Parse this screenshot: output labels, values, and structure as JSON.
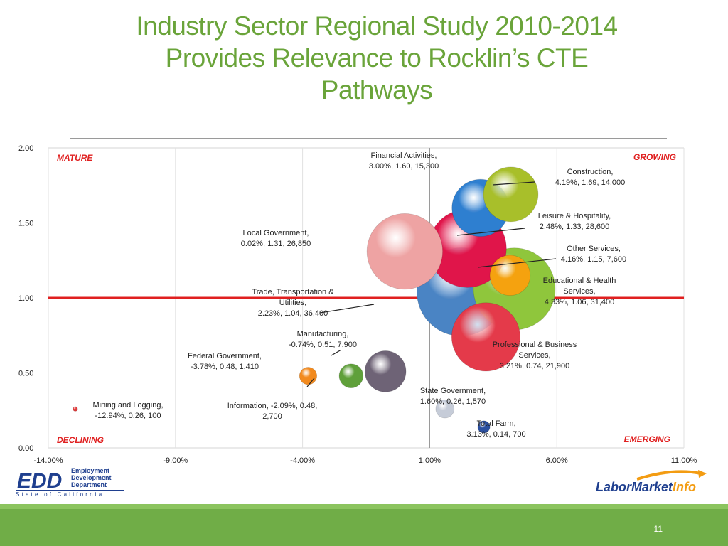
{
  "slide": {
    "title_lines": [
      "Industry Sector Regional Study 2010-2014",
      "Provides Relevance to Rocklin’s CTE",
      "Pathways"
    ],
    "page_number": "11",
    "accent_color": "#6aa43a",
    "bar_color": "#70ad47"
  },
  "logos": {
    "edd": {
      "abbr": "EDD",
      "lines": [
        "Employment",
        "Development",
        "Department"
      ],
      "state": "State of California"
    },
    "lmi": {
      "part1": "LaborMarket",
      "part2": "Info"
    }
  },
  "chart_data": {
    "type": "scatter",
    "subtype": "bubble",
    "xlim": [
      -14,
      11
    ],
    "ylim": [
      0,
      2
    ],
    "xticks": [
      -14,
      -9,
      -4,
      1,
      6,
      11
    ],
    "xtick_labels": [
      "-14.00%",
      "-9.00%",
      "-4.00%",
      "1.00%",
      "6.00%",
      "11.00%"
    ],
    "yticks": [
      0,
      0.5,
      1,
      1.5,
      2
    ],
    "ytick_labels": [
      "0.00",
      "0.50",
      "1.00",
      "1.50",
      "2.00"
    ],
    "grid": true,
    "reference_lines": {
      "vertical_x": 1,
      "horizontal_y": 1,
      "horizontal_color": "#e02020"
    },
    "quadrants": {
      "top_left": "MATURE",
      "top_right": "GROWING",
      "bottom_left": "DECLINING",
      "bottom_right": "EMERGING"
    },
    "points": [
      {
        "label_lines": [
          "Financial Activities,",
          "3.00%, 1.60, 15,300"
        ],
        "x": 3.0,
        "y": 1.6,
        "size": 15300,
        "color": "#2e7fd0"
      },
      {
        "label_lines": [
          "Construction,",
          "4.19%, 1.69, 14,000"
        ],
        "x": 4.19,
        "y": 1.69,
        "size": 14000,
        "color": "#a8bf2a"
      },
      {
        "label_lines": [
          "Leisure & Hospitality,",
          "2.48%, 1.33, 28,600"
        ],
        "x": 2.48,
        "y": 1.33,
        "size": 28600,
        "color": "#e0154a"
      },
      {
        "label_lines": [
          "Local Government,",
          "0.02%, 1.31, 26,850"
        ],
        "x": 0.02,
        "y": 1.31,
        "size": 26850,
        "color": "#eea3a3"
      },
      {
        "label_lines": [
          "Other Services,",
          "4.16%, 1.15, 7,600"
        ],
        "x": 4.16,
        "y": 1.15,
        "size": 7600,
        "color": "#f5a20f"
      },
      {
        "label_lines": [
          "Educational & Health",
          "Services,",
          "4.33%, 1.06, 31,400"
        ],
        "x": 4.33,
        "y": 1.06,
        "size": 31400,
        "color": "#8fc63c"
      },
      {
        "label_lines": [
          "Trade, Transportation &",
          "Utilities,",
          "2.23%, 1.04, 36,400"
        ],
        "x": 2.23,
        "y": 1.04,
        "size": 36400,
        "color": "#4a84c4"
      },
      {
        "label_lines": [
          "Professional & Business",
          "Services,",
          "3.21%, 0.74, 21,900"
        ],
        "x": 3.21,
        "y": 0.74,
        "size": 21900,
        "color": "#e43a4a"
      },
      {
        "label_lines": [
          "Manufacturing,",
          "-0.74%, 0.51, 7,900"
        ],
        "x": -0.74,
        "y": 0.51,
        "size": 7900,
        "color": "#6e6376"
      },
      {
        "label_lines": [
          "Federal Government,",
          "-3.78%, 0.48, 1,410"
        ],
        "x": -3.78,
        "y": 0.48,
        "size": 1410,
        "color": "#f28a1e"
      },
      {
        "label_lines": [
          "Information, -2.09%, 0.48,",
          "2,700"
        ],
        "x": -2.09,
        "y": 0.48,
        "size": 2700,
        "color": "#5fa03a"
      },
      {
        "label_lines": [
          "Mining and Logging,",
          "-12.94%, 0.26, 100"
        ],
        "x": -12.94,
        "y": 0.26,
        "size": 100,
        "color": "#e03a3a"
      },
      {
        "label_lines": [
          "State Government,",
          "1.60%, 0.26, 1,570"
        ],
        "x": 1.6,
        "y": 0.26,
        "size": 1570,
        "color": "#c6ccd8"
      },
      {
        "label_lines": [
          "Total Farm,",
          "3.13%, 0.14, 700"
        ],
        "x": 3.13,
        "y": 0.14,
        "size": 700,
        "color": "#2a4fa0"
      }
    ]
  }
}
